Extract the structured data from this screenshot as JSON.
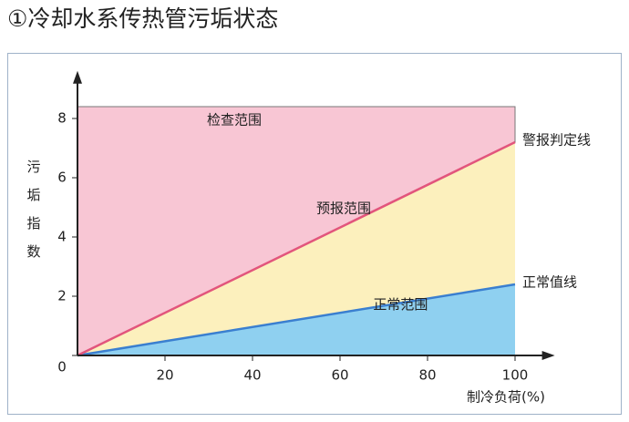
{
  "chart_data": {
    "type": "area",
    "title": "①冷却水系传热管污垢状态",
    "x_label": "制冷负荷(%)",
    "y_label": "污垢指数",
    "x": [
      0,
      100
    ],
    "series": [
      {
        "name": "正常值线",
        "color": "#3a7fd0",
        "values": [
          0,
          2.4
        ]
      },
      {
        "name": "警报判定线",
        "color": "#e2557c",
        "values": [
          0,
          7.2
        ]
      }
    ],
    "regions": [
      {
        "label": "正常范围",
        "color": "#8fd0f0"
      },
      {
        "label": "预报范围",
        "color": "#fcf0bd"
      },
      {
        "label": "检查范围",
        "color": "#f8c6d4",
        "values": [
          8.4,
          8.4
        ]
      }
    ],
    "xlim": [
      0,
      107
    ],
    "ylim": [
      0,
      9.3
    ],
    "xticks": [
      20,
      40,
      60,
      80,
      100
    ],
    "yticks": [
      0,
      2,
      4,
      6,
      8
    ]
  }
}
